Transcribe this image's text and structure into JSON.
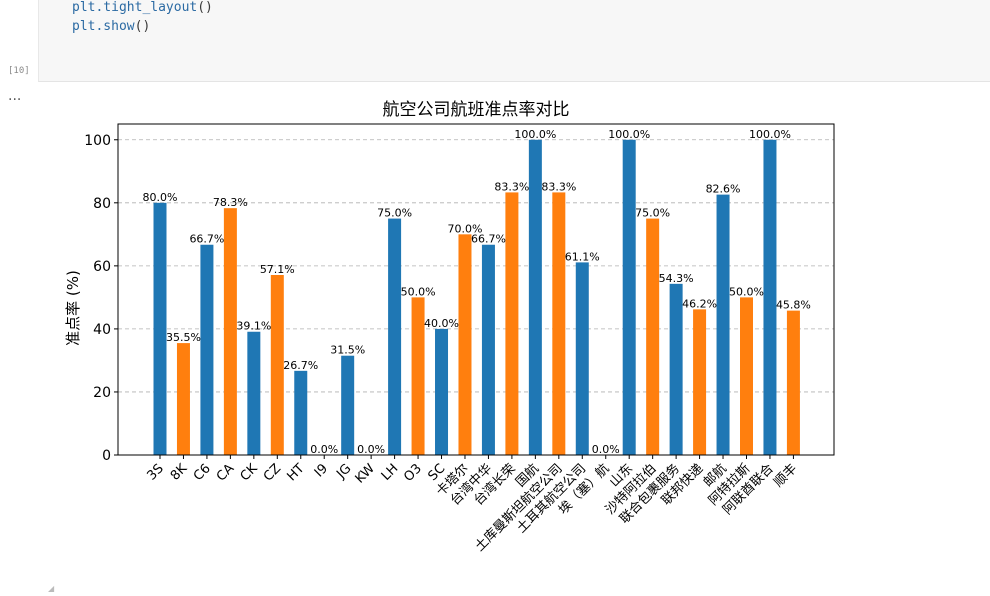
{
  "notebook": {
    "code_lines": [
      {
        "fn": "plt",
        "method": ".tight_layout",
        "args": "()"
      },
      {
        "fn": "plt",
        "method": ".show",
        "args": "()"
      }
    ],
    "execution_count": "[10]",
    "output_prompt": "..."
  },
  "chart_data": {
    "type": "bar",
    "title": "航空公司航班准点率对比",
    "xlabel": "",
    "ylabel": "准点率 (%)",
    "ylim": [
      0,
      105
    ],
    "yticks": [
      0,
      20,
      40,
      60,
      80,
      100
    ],
    "grid": "y-dashed",
    "legend": "none",
    "colors": [
      "#1f77b4",
      "#ff7f0e"
    ],
    "categories": [
      "3S",
      "8K",
      "C6",
      "CA",
      "CK",
      "CZ",
      "HT",
      "I9",
      "JG",
      "KW",
      "LH",
      "O3",
      "SC",
      "卡塔尔",
      "台湾中华",
      "台湾长荣",
      "国航",
      "土库曼斯坦航空公司",
      "土耳其航空公司",
      "埃（塞）航",
      "山东",
      "沙特阿拉伯",
      "联合包裹服务",
      "联邦快递",
      "邮航",
      "阿特拉斯",
      "阿联酋联合",
      "顺丰"
    ],
    "values": [
      80.0,
      35.5,
      66.7,
      78.3,
      39.1,
      57.1,
      26.7,
      0.0,
      31.5,
      0.0,
      75.0,
      50.0,
      40.0,
      70.0,
      66.7,
      83.3,
      100.0,
      83.3,
      61.1,
      0.0,
      100.0,
      75.0,
      54.3,
      46.2,
      82.6,
      50.0,
      100.0,
      45.8
    ],
    "value_labels": [
      "80.0%",
      "35.5%",
      "66.7%",
      "78.3%",
      "39.1%",
      "57.1%",
      "26.7%",
      "0.0%",
      "31.5%",
      "0.0%",
      "75.0%",
      "50.0%",
      "40.0%",
      "70.0%",
      "66.7%",
      "83.3%",
      "100.0%",
      "83.3%",
      "61.1%",
      "0.0%",
      "100.0%",
      "75.0%",
      "54.3%",
      "46.2%",
      "82.6%",
      "50.0%",
      "100.0%",
      "45.8%"
    ]
  }
}
